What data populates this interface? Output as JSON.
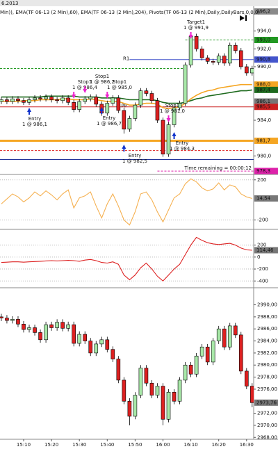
{
  "header": "6.2013",
  "chart_data": [
    {
      "type": "candlestick",
      "title": "Min)), EMA(TF 06-13 (2 Min),60), EMA(TF 06-13 (2 Min),204), Pivots(TF 06-13 (2 Min),Daily,DailyBars,0,0,0)",
      "x": [
        "15:02",
        "15:04",
        "15:06",
        "15:08",
        "15:10",
        "15:12",
        "15:14",
        "15:16",
        "15:18",
        "15:20",
        "15:22",
        "15:24",
        "15:26",
        "15:28",
        "15:30",
        "15:32",
        "15:34",
        "15:36",
        "15:38",
        "15:40",
        "15:42",
        "15:44",
        "15:46",
        "15:48",
        "15:50",
        "15:52",
        "15:54",
        "15:56",
        "15:58",
        "16:00",
        "16:02",
        "16:04",
        "16:06",
        "16:08",
        "16:10",
        "16:12",
        "16:14",
        "16:16",
        "16:18",
        "16:20",
        "16:22",
        "16:24",
        "16:26",
        "16:28",
        "16:30",
        "16:32"
      ],
      "open": [
        986.1,
        986.3,
        986.1,
        986.4,
        986.2,
        986.0,
        986.3,
        986.5,
        986.4,
        986.6,
        986.3,
        986.2,
        986.5,
        986.0,
        985.2,
        986.1,
        986.4,
        986.6,
        985.8,
        984.8,
        985.9,
        986.5,
        985.1,
        983.0,
        984.2,
        985.7,
        987.3,
        987.0,
        986.2,
        984.0,
        980.2,
        983.5,
        985.4,
        985.9,
        990.2,
        993.4,
        992.0,
        991.0,
        990.6,
        990.5,
        991.2,
        990.4,
        992.4,
        991.8,
        990.0,
        989.3
      ],
      "high": [
        986.6,
        986.6,
        986.7,
        986.7,
        986.5,
        986.6,
        986.8,
        986.8,
        986.9,
        986.9,
        986.6,
        986.8,
        986.8,
        986.3,
        986.4,
        986.7,
        986.9,
        986.9,
        986.1,
        986.2,
        986.8,
        986.8,
        985.4,
        984.5,
        986.0,
        987.6,
        987.6,
        987.3,
        986.5,
        984.3,
        983.8,
        985.7,
        986.2,
        990.5,
        993.8,
        993.7,
        992.3,
        991.3,
        990.9,
        991.5,
        991.5,
        992.7,
        992.7,
        992.1,
        990.3,
        990.1
      ],
      "low": [
        985.8,
        985.8,
        985.8,
        985.9,
        985.7,
        985.7,
        986.0,
        986.1,
        986.1,
        986.0,
        985.9,
        985.9,
        985.7,
        984.9,
        984.9,
        985.8,
        986.1,
        985.5,
        984.5,
        984.5,
        985.6,
        984.8,
        982.5,
        982.7,
        983.9,
        985.4,
        986.7,
        985.9,
        983.7,
        979.9,
        979.9,
        983.2,
        985.1,
        985.6,
        989.9,
        991.7,
        990.7,
        990.3,
        990.2,
        990.2,
        990.1,
        990.1,
        991.5,
        989.7,
        989.0,
        989.0
      ],
      "close": [
        986.3,
        986.1,
        986.4,
        986.2,
        986.0,
        986.3,
        986.5,
        986.4,
        986.6,
        986.3,
        986.2,
        986.5,
        986.0,
        985.2,
        986.1,
        986.4,
        986.6,
        985.8,
        984.8,
        985.9,
        986.5,
        985.1,
        983.0,
        984.2,
        985.7,
        987.3,
        987.0,
        986.2,
        984.0,
        980.2,
        983.5,
        985.4,
        985.9,
        990.2,
        993.4,
        992.0,
        991.0,
        990.6,
        990.5,
        991.2,
        990.4,
        992.4,
        991.8,
        990.0,
        989.3,
        989.8
      ],
      "up_color": "#a8e8a8",
      "down_color": "#dd2020",
      "series": [
        {
          "color": "#1f6b1f",
          "values": [
            986.6,
            986.6,
            986.6,
            986.6,
            986.6,
            986.6,
            986.6,
            986.6,
            986.7,
            986.7,
            986.7,
            986.7,
            986.7,
            986.7,
            986.6,
            986.6,
            986.6,
            986.6,
            986.5,
            986.5,
            986.5,
            986.5,
            986.4,
            986.3,
            986.3,
            986.3,
            986.3,
            986.3,
            986.2,
            986.0,
            985.9,
            985.9,
            985.9,
            986.0,
            986.2,
            986.4,
            986.5,
            986.7,
            986.8,
            986.9,
            987.0,
            987.1,
            987.2,
            987.3,
            987.3,
            987.4
          ]
        },
        {
          "color": "#f5a623",
          "values": [
            986.1,
            986.1,
            986.1,
            986.1,
            986.2,
            986.2,
            986.2,
            986.3,
            986.3,
            986.3,
            986.3,
            986.4,
            986.4,
            986.3,
            986.3,
            986.3,
            986.4,
            986.3,
            986.2,
            986.1,
            986.1,
            986.1,
            985.9,
            985.7,
            985.7,
            985.8,
            985.9,
            985.9,
            985.8,
            985.4,
            985.3,
            985.4,
            985.5,
            985.9,
            986.4,
            986.8,
            987.1,
            987.3,
            987.4,
            987.6,
            987.7,
            987.8,
            987.9,
            988.0,
            988.0,
            988.0
          ]
        }
      ],
      "ylim": [
        978.0,
        996.7
      ],
      "yticks": [
        {
          "value": 994.0,
          "label": "994,0"
        },
        {
          "value": 992.0,
          "label": "992,0"
        },
        {
          "value": 990.0,
          "label": "990,0"
        },
        {
          "value": 984.0,
          "label": "984,0"
        },
        {
          "value": 980.0,
          "label": "980,0"
        }
      ],
      "levels": [
        {
          "value": 996.2,
          "label": "996,2",
          "color": "#8a8a8a",
          "line": false
        },
        {
          "value": 993.0,
          "label": "993,0",
          "color": "#229922",
          "dash": true,
          "from": "16:08"
        },
        {
          "value": 989.8,
          "color": "#229922",
          "dash": true,
          "to": "16:08"
        },
        {
          "value": 990.8,
          "label": "990,8",
          "color": "#4455cc",
          "name": "R1",
          "from": "15:48"
        },
        {
          "value": 988.0,
          "label": "988,0",
          "color": "#f5a623",
          "line": false
        },
        {
          "value": 987.4,
          "label": "987,4",
          "color": "#1f6b1f",
          "line": false
        },
        {
          "value": 986.1,
          "label": "986,1",
          "color": "#777777",
          "line": false
        },
        {
          "value": 985.5,
          "label": "985,5",
          "color": "#cc2222",
          "name": "PP"
        },
        {
          "value": 981.7,
          "label": "981,7",
          "color": "#f5a623",
          "width": 3
        },
        {
          "value": 980.6,
          "color": "#dd2020",
          "dash": true
        },
        {
          "value": 979.6,
          "color": "#223399"
        },
        {
          "value": 978.3,
          "label": "978,3",
          "color": "#dd22aa",
          "dash": true,
          "from": "15:58"
        }
      ],
      "annotations": [
        {
          "lines": [
            "Entry",
            "1 @ 986,1"
          ],
          "x": "15:12",
          "kind": "entry"
        },
        {
          "lines": [
            "Stop1",
            "1 @ 986,4"
          ],
          "x": "15:28",
          "kind": "stop"
        },
        {
          "lines": [
            "Stop1",
            "1 @ 986,2"
          ],
          "x": "15:32",
          "kind": "stop"
        },
        {
          "lines": [
            "Stop1",
            "1 @ 985,0"
          ],
          "x": "15:40",
          "kind": "stop"
        },
        {
          "lines": [
            "Entry",
            "1 @ 986,7"
          ],
          "x": "15:38",
          "kind": "entry"
        },
        {
          "lines": [
            "Entry",
            "1 @ 982,5"
          ],
          "x": "15:46",
          "kind": "entry"
        },
        {
          "lines": [
            "Stop1",
            "1 @ 981,0"
          ],
          "x": "16:02",
          "kind": "stop"
        },
        {
          "lines": [
            "Entry",
            "1 @ 984,3"
          ],
          "x": "16:04",
          "kind": "entry"
        },
        {
          "lines": [
            "Target1",
            "1 @ 991,9"
          ],
          "x": "16:10",
          "kind": "stop"
        }
      ],
      "time_remaining": "Time remaining = 00:00:12"
    },
    {
      "type": "line",
      "series": [
        {
          "color": "#f5b050",
          "values": [
            -40,
            10,
            60,
            30,
            -20,
            20,
            80,
            40,
            90,
            50,
            0,
            60,
            100,
            -80,
            20,
            40,
            80,
            -60,
            -180,
            -40,
            60,
            -60,
            -200,
            -250,
            -120,
            60,
            80,
            0,
            -120,
            -220,
            -100,
            20,
            60,
            160,
            210,
            180,
            120,
            90,
            110,
            170,
            100,
            150,
            130,
            60,
            30,
            14.54
          ]
        }
      ],
      "ylim": [
        -280,
        240
      ],
      "yticks": [
        200,
        -200
      ],
      "levels": [
        {
          "value": 14.54,
          "label": "14,54",
          "color": "#777777",
          "line": false
        }
      ]
    },
    {
      "type": "line",
      "series": [
        {
          "color": "#dd2020",
          "values": [
            -90,
            -85,
            -80,
            -80,
            -85,
            -80,
            -75,
            -70,
            -65,
            -60,
            -65,
            -60,
            -55,
            -60,
            -70,
            -50,
            -40,
            -60,
            -90,
            -100,
            -80,
            -120,
            -300,
            -380,
            -300,
            -180,
            -100,
            -200,
            -320,
            -400,
            -300,
            -200,
            -120,
            40,
            200,
            330,
            280,
            240,
            220,
            210,
            220,
            230,
            200,
            150,
            120,
            114.46
          ]
        }
      ],
      "ylim": [
        -490,
        440
      ],
      "yticks": [
        200,
        0,
        -200,
        -400
      ],
      "levels": [
        {
          "value": 114.46,
          "label": "114,46",
          "color": "#777777",
          "line": false
        }
      ]
    },
    {
      "type": "candlestick",
      "open": [
        2988.0,
        2987.8,
        2987.4,
        2987.6,
        2986.8,
        2985.9,
        2986.2,
        2985.4,
        2984.2,
        2986.7,
        2986.2,
        2987.1,
        2986.1,
        2986.7,
        2983.6,
        2985.1,
        2984.0,
        2982.0,
        2983.5,
        2984.2,
        2982.6,
        2981.0,
        2977.5,
        2974.0,
        2971.5,
        2975.0,
        2979.5,
        2977.0,
        2975.0,
        2976.5,
        2971.0,
        2975.5,
        2974.0,
        2977.5,
        2980.0,
        2978.5,
        2981.5,
        2983.0,
        2980.5,
        2984.0,
        2986.0,
        2983.0,
        2986.5,
        2985.0,
        2979.0,
        2976.5
      ],
      "high": [
        2988.5,
        2988.3,
        2988.1,
        2988.1,
        2987.3,
        2986.7,
        2986.7,
        2985.9,
        2987.2,
        2987.2,
        2987.6,
        2987.6,
        2987.2,
        2987.2,
        2985.6,
        2985.6,
        2984.5,
        2984.0,
        2984.7,
        2984.7,
        2983.1,
        2981.5,
        2978.0,
        2974.5,
        2975.5,
        2980.0,
        2980.0,
        2977.5,
        2977.0,
        2977.0,
        2976.0,
        2976.0,
        2978.0,
        2980.5,
        2980.5,
        2982.0,
        2983.5,
        2983.5,
        2984.5,
        2986.5,
        2986.5,
        2987.0,
        2987.0,
        2985.5,
        2979.5,
        2977.0
      ],
      "low": [
        2987.3,
        2986.9,
        2986.9,
        2986.3,
        2985.4,
        2985.4,
        2984.9,
        2983.7,
        2983.7,
        2985.7,
        2985.7,
        2985.6,
        2985.6,
        2983.1,
        2983.1,
        2983.5,
        2981.5,
        2981.5,
        2983.0,
        2982.1,
        2980.5,
        2977.0,
        2973.5,
        2970.0,
        2971.0,
        2974.5,
        2976.5,
        2974.5,
        2974.5,
        2970.0,
        2970.5,
        2973.5,
        2973.5,
        2977.0,
        2978.0,
        2978.0,
        2981.0,
        2980.0,
        2980.0,
        2983.5,
        2982.5,
        2982.5,
        2984.5,
        2978.5,
        2976.0,
        2973.0
      ],
      "close": [
        2987.8,
        2987.4,
        2987.6,
        2986.8,
        2985.9,
        2986.2,
        2985.4,
        2984.2,
        2986.7,
        2986.2,
        2987.1,
        2986.1,
        2986.7,
        2983.6,
        2985.1,
        2984.0,
        2982.0,
        2983.5,
        2984.2,
        2982.6,
        2981.0,
        2977.5,
        2974.0,
        2971.5,
        2975.0,
        2979.5,
        2977.0,
        2975.0,
        2976.5,
        2971.0,
        2975.5,
        2974.0,
        2977.5,
        2980.0,
        2978.5,
        2981.5,
        2983.0,
        2980.5,
        2984.0,
        2986.0,
        2983.0,
        2986.5,
        2985.0,
        2979.0,
        2976.5,
        2973.76
      ],
      "up_color": "#a8e8a8",
      "down_color": "#dd2020",
      "ylim": [
        2967.8,
        2992.6
      ],
      "yticks": [
        {
          "value": 2990,
          "label": "2990,00"
        },
        {
          "value": 2988,
          "label": "2988,00"
        },
        {
          "value": 2986,
          "label": "2986,00"
        },
        {
          "value": 2984,
          "label": "2984,00"
        },
        {
          "value": 2982,
          "label": "2982,00"
        },
        {
          "value": 2980,
          "label": "2980,00"
        },
        {
          "value": 2978,
          "label": "2978,00"
        },
        {
          "value": 2976,
          "label": "2976,00"
        },
        {
          "value": 2972,
          "label": "2972,00"
        },
        {
          "value": 2970,
          "label": "2970,00"
        },
        {
          "value": 2968,
          "label": "2968,00"
        }
      ],
      "levels": [
        {
          "value": 2973.76,
          "label": "2973,76",
          "color": "#777777",
          "line": false
        }
      ],
      "xticks": [
        "15:10",
        "15:20",
        "15:30",
        "15:40",
        "15:50",
        "16:00",
        "16:10",
        "16:20",
        "16:30"
      ]
    }
  ]
}
